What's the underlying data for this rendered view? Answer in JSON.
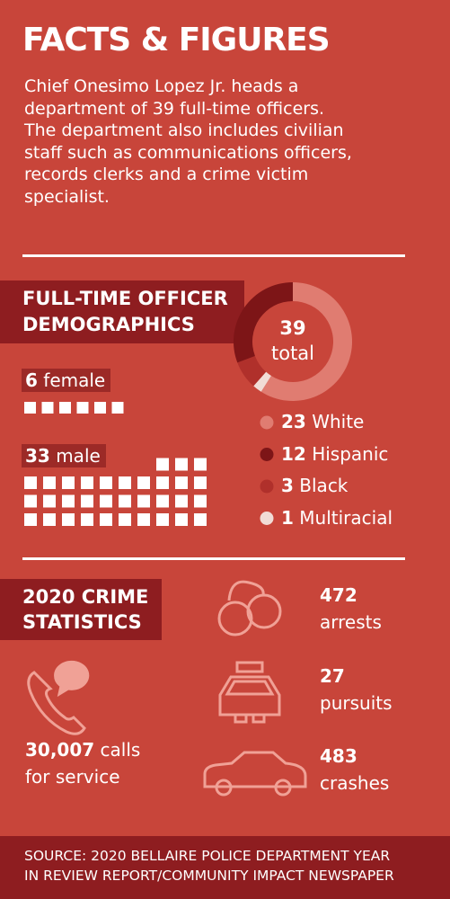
{
  "title": "FACTS & FIGURES",
  "intro": [
    "Chief Onesimo Lopez Jr. heads a",
    "department of 39 full-time officers.",
    "The department also includes civilian",
    "staff such as communications officers,",
    "records clerks and a crime victim",
    "specialist."
  ],
  "demographics": {
    "heading": [
      "FULL-TIME OFFICER",
      "DEMOGRAPHICS"
    ],
    "gender": [
      {
        "count": 6,
        "label": "female"
      },
      {
        "count": 33,
        "label": "male"
      }
    ],
    "total": {
      "value": 39,
      "label": "total"
    },
    "races": [
      {
        "count": 23,
        "label": "White",
        "color": "#e07c71"
      },
      {
        "count": 12,
        "label": "Hispanic",
        "color": "#7d1517"
      },
      {
        "count": 3,
        "label": "Black",
        "color": "#b0302b"
      },
      {
        "count": 1,
        "label": "Multiracial",
        "color": "#f1dcd6"
      }
    ]
  },
  "crime": {
    "heading": [
      "2020 CRIME",
      "STATISTICS"
    ],
    "calls": {
      "count": "30,007",
      "label": "calls",
      "label2": "for service"
    },
    "stats": [
      {
        "count": 472,
        "label": "arrests"
      },
      {
        "count": 27,
        "label": "pursuits"
      },
      {
        "count": 483,
        "label": "crashes"
      }
    ]
  },
  "source": [
    "SOURCE: 2020 BELLAIRE POLICE DEPARTMENT YEAR",
    "IN REVIEW REPORT/COMMUNITY IMPACT NEWSPAPER"
  ]
}
